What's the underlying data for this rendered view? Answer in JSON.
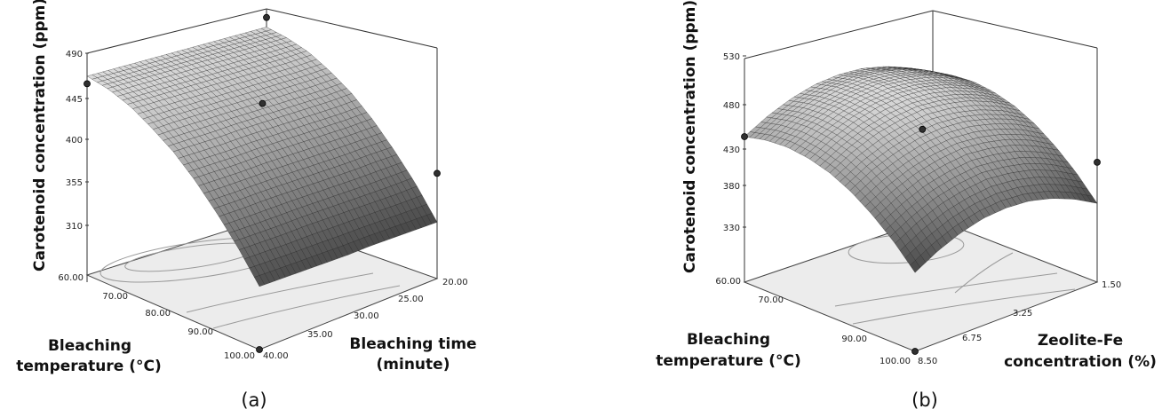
{
  "chart_data": [
    {
      "type": "surface",
      "panel_label": "(a)",
      "zlabel": "Carotenoid concentration (ppm)",
      "xlabel_lines": [
        "Bleaching",
        "temperature (°C)"
      ],
      "ylabel_lines": [
        "Bleaching time",
        "(minute)"
      ],
      "z_ticks": [
        "310",
        "355",
        "400",
        "445",
        "490"
      ],
      "x_ticks": [
        "60.00",
        "70.00",
        "80.00",
        "90.00",
        "100.00"
      ],
      "y_ticks": [
        "20.00",
        "25.00",
        "30.00",
        "35.00",
        "40.00"
      ],
      "zlim": [
        290,
        500
      ],
      "x_range": [
        60,
        100
      ],
      "y_range": [
        20,
        40
      ],
      "x_values": [
        60,
        65,
        70,
        75,
        80,
        85,
        90,
        95,
        100
      ],
      "y_values": [
        20,
        22.5,
        25,
        27.5,
        30,
        32.5,
        35,
        37.5,
        40
      ],
      "surface_z": [
        [
          490,
          491,
          492,
          493,
          494,
          495,
          496,
          497,
          498
        ],
        [
          486,
          487,
          488,
          489,
          490,
          491,
          492,
          493,
          494
        ],
        [
          479,
          479,
          480,
          481,
          482,
          483,
          484,
          485,
          486
        ],
        [
          467,
          467,
          468,
          469,
          470,
          471,
          472,
          473,
          473
        ],
        [
          452,
          452,
          453,
          454,
          455,
          456,
          456,
          457,
          458
        ],
        [
          432,
          432,
          433,
          434,
          435,
          436,
          436,
          437,
          438
        ],
        [
          408,
          409,
          409,
          410,
          411,
          412,
          413,
          413,
          414
        ],
        [
          381,
          381,
          382,
          383,
          384,
          385,
          385,
          386,
          387
        ],
        [
          349,
          350,
          351,
          352,
          352,
          353,
          354,
          355,
          356
        ]
      ],
      "design_points": [
        {
          "x": 60,
          "y": 40,
          "z": 490
        },
        {
          "x": 60,
          "y": 20,
          "z": 500
        },
        {
          "x": 80,
          "y": 30,
          "z": 475
        },
        {
          "x": 100,
          "y": 40,
          "z": 290
        },
        {
          "x": 100,
          "y": 20,
          "z": 400
        }
      ]
    },
    {
      "type": "surface",
      "panel_label": "(b)",
      "zlabel": "Carotenoid concentration (ppm)",
      "xlabel_lines": [
        "Bleaching",
        "temperature (°C)"
      ],
      "ylabel_lines": [
        "Zeolite-Fe",
        "concentration (%)"
      ],
      "z_ticks": [
        "330",
        "380",
        "430",
        "480",
        "530"
      ],
      "x_ticks": [
        "60.00",
        "70.00",
        "90.00",
        "100.00"
      ],
      "y_ticks": [
        "1.50",
        "3.25",
        "6.75",
        "8.50"
      ],
      "zlim": [
        300,
        540
      ],
      "x_range": [
        60,
        100
      ],
      "y_range": [
        1.5,
        8.5
      ],
      "x_values": [
        60,
        65,
        70,
        75,
        80,
        85,
        90,
        95,
        100
      ],
      "y_values": [
        1.5,
        2.375,
        3.25,
        4.125,
        5.0,
        5.875,
        6.75,
        7.625,
        8.5
      ],
      "surface_z": [
        [
          470,
          485,
          496,
          503,
          505,
          503,
          496,
          485,
          470
        ],
        [
          476,
          491,
          502,
          509,
          511,
          509,
          502,
          491,
          476
        ],
        [
          478,
          493,
          504,
          510,
          513,
          510,
          504,
          493,
          478
        ],
        [
          475,
          490,
          501,
          508,
          510,
          508,
          501,
          490,
          475
        ],
        [
          468,
          483,
          494,
          500,
          503,
          500,
          494,
          483,
          468
        ],
        [
          456,
          471,
          481,
          488,
          490,
          488,
          481,
          471,
          456
        ],
        [
          439,
          454,
          465,
          471,
          474,
          471,
          465,
          454,
          439
        ],
        [
          418,
          433,
          444,
          450,
          453,
          450,
          444,
          433,
          418
        ],
        [
          392,
          407,
          418,
          425,
          427,
          425,
          418,
          407,
          392
        ]
      ],
      "design_points": [
        {
          "x": 60,
          "y": 8.5,
          "z": 470
        },
        {
          "x": 80,
          "y": 5.0,
          "z": 480
        },
        {
          "x": 100,
          "y": 1.5,
          "z": 440
        },
        {
          "x": 100,
          "y": 8.5,
          "z": 300
        }
      ]
    }
  ]
}
